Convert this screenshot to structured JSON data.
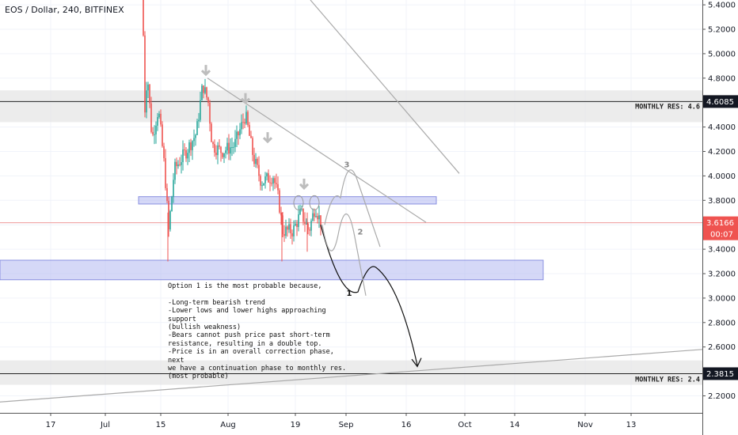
{
  "header": {
    "title": "EOS / Dollar, 240, BITFINEX"
  },
  "chart_data": {
    "type": "candlestick",
    "symbol": "EOS / Dollar",
    "interval": "240",
    "exchange": "BITFINEX",
    "x_ticks": [
      "17",
      "Jul",
      "15",
      "Aug",
      "19",
      "Sep",
      "16",
      "Oct",
      "14",
      "Nov",
      "13"
    ],
    "y_ticks": [
      5.4,
      5.2,
      5.0,
      4.8,
      4.6,
      4.4,
      4.2,
      4.0,
      3.8,
      3.6,
      3.4,
      3.2,
      3.0,
      2.8,
      2.6,
      2.4,
      2.2
    ],
    "ylim": [
      2.08,
      5.45
    ],
    "current_price": {
      "label": "3.6166",
      "value": 3.6166,
      "countdown": "00:07",
      "color": "#ef5350"
    },
    "levels": [
      {
        "label": "MONTHLY RES: 4.6",
        "price_label": "4.6085",
        "value": 4.6085,
        "zone": [
          4.44,
          4.7
        ]
      },
      {
        "label": "MONTHLY RES: 2.4",
        "price_label": "2.3815",
        "value": 2.3815,
        "zone": [
          2.29,
          2.49
        ]
      }
    ],
    "zones": [
      {
        "name": "short-term-resistance",
        "range": [
          3.77,
          3.83
        ],
        "color": "#b3b8f0"
      },
      {
        "name": "support",
        "range": [
          3.15,
          3.31
        ],
        "color": "#b3b8f0"
      }
    ],
    "scenarios": [
      "1",
      "2",
      "3"
    ],
    "annotation": "Option 1 is the most probable because,\n\n-Long-term bearish trend\n-Lower lows and lower highs approaching support\n(bullish weakness)\n-Bears cannot push price past short-term\nresistance, resulting in a double top.\n-Price is in an overall correction phase, next\nwe have a continuation phase to monthly res.\n(most probable)",
    "up_color": "#26a69a",
    "down_color": "#ef5350"
  }
}
